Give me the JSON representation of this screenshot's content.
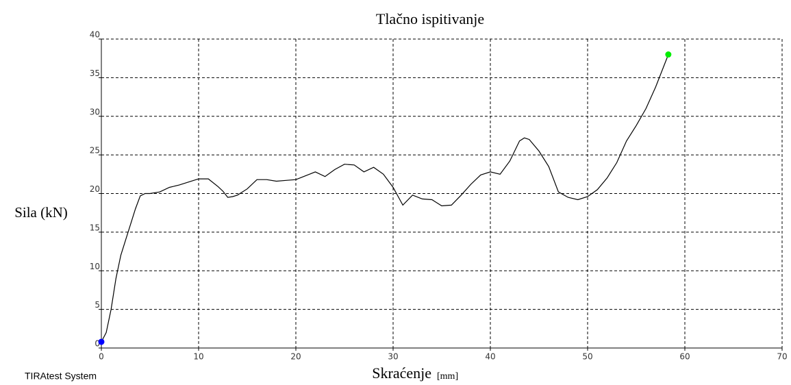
{
  "chart_data": {
    "type": "line",
    "title": "Tlačno ispitivanje",
    "ylabel": "Sila (kN)",
    "xlabel": "Skraćenje",
    "xunit": "[mm]",
    "footer": "TIRAtest System",
    "xlim": [
      0,
      70
    ],
    "xticks": [
      0,
      10,
      20,
      30,
      40,
      50,
      60,
      70
    ],
    "ylim": [
      0,
      40
    ],
    "yticks": [
      0,
      5,
      10,
      15,
      20,
      25,
      30,
      35,
      40
    ],
    "grid": true,
    "series": [
      {
        "color": "#000000",
        "x": [
          0,
          0.5,
          1,
          1.5,
          2,
          2.5,
          3,
          3.5,
          4,
          4.5,
          5,
          6,
          7,
          8,
          9,
          10,
          11,
          12,
          12.5,
          13,
          13.5,
          14,
          15,
          16,
          17,
          18,
          19,
          20,
          21,
          22,
          23,
          24,
          25,
          26,
          27,
          28,
          29,
          30,
          31,
          32,
          33,
          34,
          35,
          36,
          37,
          38,
          39,
          40,
          41,
          42,
          43,
          43.5,
          44,
          45,
          46,
          47,
          48,
          49,
          50,
          51,
          52,
          53,
          54,
          55,
          56,
          57,
          58.3
        ],
        "values": [
          0.8,
          2,
          5,
          9,
          12,
          14,
          16,
          18,
          19.7,
          20,
          20,
          20.2,
          20.8,
          21.1,
          21.5,
          21.9,
          21.9,
          20.9,
          20.3,
          19.5,
          19.6,
          19.8,
          20.6,
          21.8,
          21.8,
          21.6,
          21.7,
          21.8,
          22.3,
          22.8,
          22.2,
          23.1,
          23.8,
          23.7,
          22.8,
          23.4,
          22.5,
          20.8,
          18.5,
          19.8,
          19.3,
          19.2,
          18.4,
          18.5,
          19.8,
          21.2,
          22.4,
          22.8,
          22.5,
          24.2,
          26.8,
          27.2,
          27,
          25.5,
          23.5,
          20.2,
          19.5,
          19.2,
          19.6,
          20.5,
          22,
          24,
          26.8,
          28.8,
          31,
          33.8,
          38
        ]
      }
    ],
    "points": [
      {
        "x": 0,
        "y": 0.8,
        "color": "#0000ff"
      },
      {
        "x": 58.3,
        "y": 38,
        "color": "#00ee00"
      }
    ]
  }
}
